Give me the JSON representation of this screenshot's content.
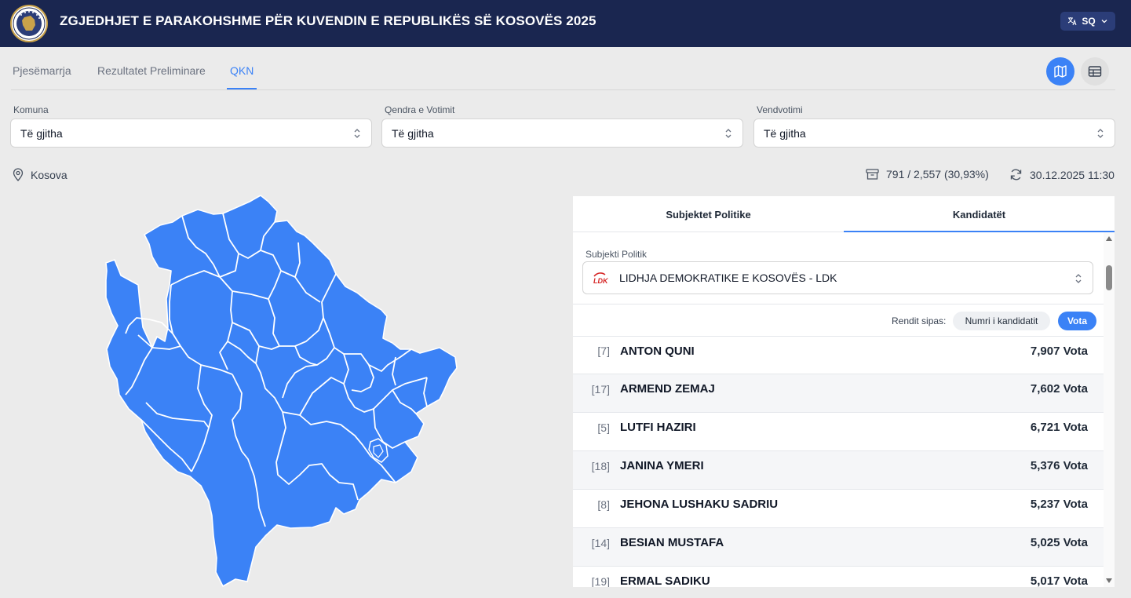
{
  "header": {
    "title": "ZGJEDHJET E PARAKOHSHME PËR KUVENDIN E REPUBLIKËS SË KOSOVËS 2025",
    "language": "SQ"
  },
  "tabs": [
    {
      "label": "Pjesëmarrja",
      "active": false
    },
    {
      "label": "Rezultatet Preliminare",
      "active": false
    },
    {
      "label": "QKN",
      "active": true
    }
  ],
  "view_toggle": {
    "active": "map"
  },
  "filters": {
    "komuna": {
      "label": "Komuna",
      "value": "Të gjitha"
    },
    "qendra": {
      "label": "Qendra e Votimit",
      "value": "Të gjitha"
    },
    "vendvotimi": {
      "label": "Vendvotimi",
      "value": "Të gjitha"
    }
  },
  "location": "Kosova",
  "stats": {
    "count": "791 / 2,557 (30,93%)",
    "updated": "30.12.2025 11:30"
  },
  "panel": {
    "tabs": [
      "Subjektet Politike",
      "Kandidatët"
    ],
    "active_tab": "Kandidatët",
    "subject_label": "Subjekti Politik",
    "subject_logo_text": "LDK",
    "subject_value": "LIDHJA DEMOKRATIKE E KOSOVËS - LDK",
    "sort_label": "Rendit sipas:",
    "sort_options": [
      "Numri i kandidatit",
      "Vota"
    ],
    "sort_active": "Vota",
    "candidates": [
      {
        "number": "[7]",
        "name": "ANTON QUNI",
        "votes": "7,907 Vota"
      },
      {
        "number": "[17]",
        "name": "ARMEND ZEMAJ",
        "votes": "7,602 Vota"
      },
      {
        "number": "[5]",
        "name": "LUTFI HAZIRI",
        "votes": "6,721 Vota"
      },
      {
        "number": "[18]",
        "name": "JANINA YMERI",
        "votes": "5,376 Vota"
      },
      {
        "number": "[8]",
        "name": "JEHONA LUSHAKU SADRIU",
        "votes": "5,237 Vota"
      },
      {
        "number": "[14]",
        "name": "BESIAN MUSTAFA",
        "votes": "5,025 Vota"
      },
      {
        "number": "[19]",
        "name": "ERMAL SADIKU",
        "votes": "5,017 Vota"
      }
    ]
  },
  "colors": {
    "header_bg": "#1a2650",
    "accent": "#3b82f6",
    "map_fill": "#3b82f6",
    "page_bg": "#ebebeb"
  }
}
